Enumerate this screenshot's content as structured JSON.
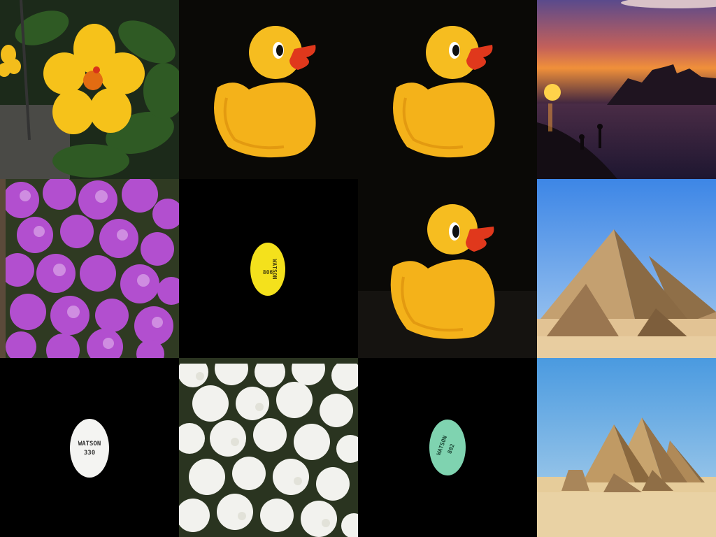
{
  "grid": {
    "columns": 4,
    "rows": 3,
    "tiles": [
      {
        "subject": "yellow hibiscus flower"
      },
      {
        "subject": "rubber duck"
      },
      {
        "subject": "rubber duck"
      },
      {
        "subject": "sunset over sea with silhouettes"
      },
      {
        "subject": "purple flowers"
      },
      {
        "subject": "yellow pill",
        "imprint_line1": "WATSON",
        "imprint_line2": "806"
      },
      {
        "subject": "rubber duck"
      },
      {
        "subject": "pyramids"
      },
      {
        "subject": "white pill",
        "imprint_line1": "WATSON",
        "imprint_line2": "330"
      },
      {
        "subject": "white flowers"
      },
      {
        "subject": "green pill",
        "imprint_line1": "WATSON",
        "imprint_line2": "802"
      },
      {
        "subject": "pyramids"
      }
    ]
  },
  "colors": {
    "duck_yellow": "#f6b81c",
    "duck_beak": "#e0381c",
    "pill_yellow": "#f4e11c",
    "pill_white": "#f4f4f2",
    "pill_green": "#7fd3b0",
    "sky_blue": "#5a9ee6",
    "sand": "#e2c394",
    "purple_flower": "#b24fcf"
  }
}
